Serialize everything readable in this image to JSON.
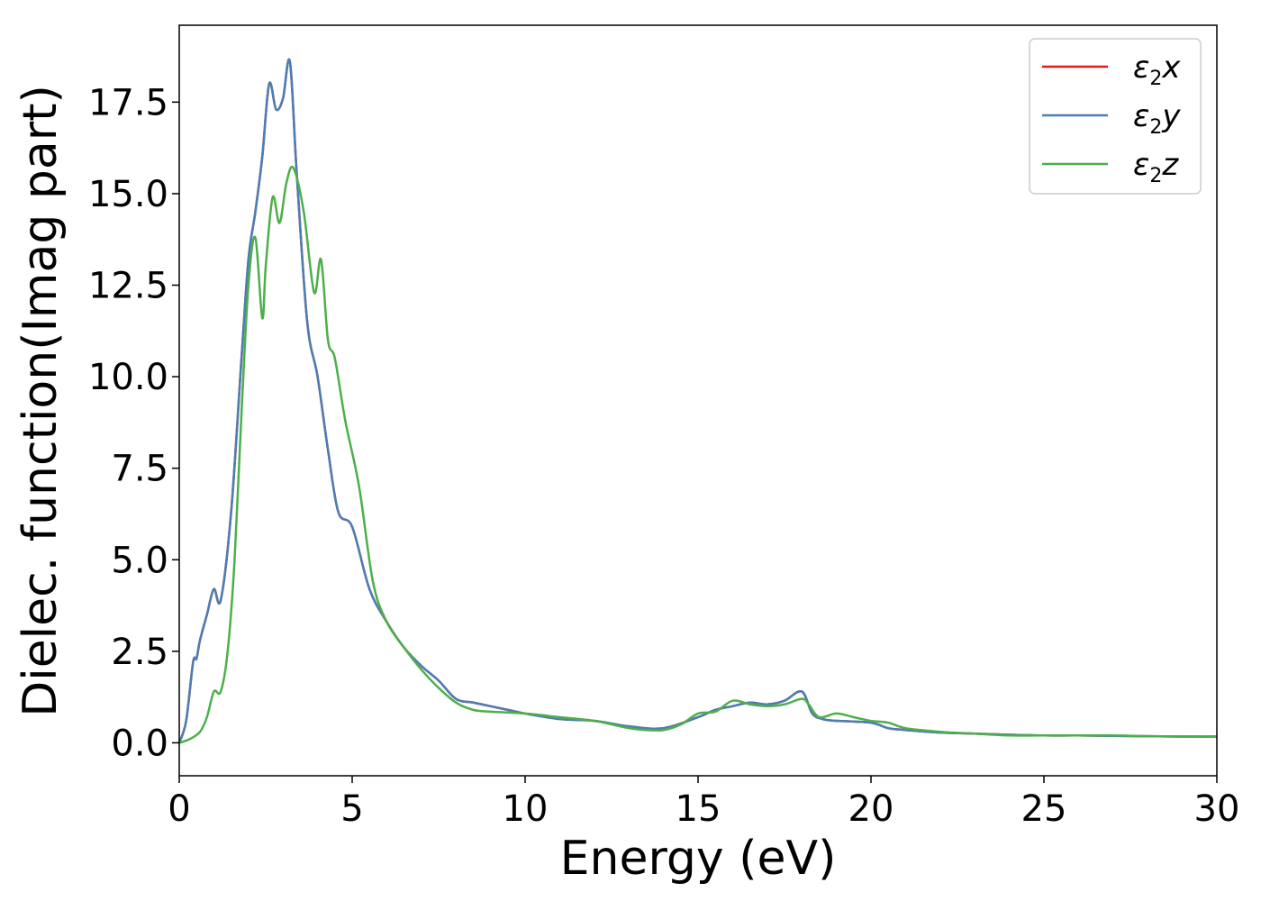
{
  "chart_data": {
    "type": "line",
    "title": "",
    "xlabel": "Energy (eV)",
    "ylabel": "Dielec. function(Imag part)",
    "xlim": [
      0,
      30
    ],
    "ylim": [
      -0.9,
      19.6
    ],
    "x_ticks": [
      0,
      5,
      10,
      15,
      20,
      25,
      30
    ],
    "x_tick_labels": [
      "0",
      "5",
      "10",
      "15",
      "20",
      "25",
      "30"
    ],
    "y_ticks": [
      0.0,
      2.5,
      5.0,
      7.5,
      10.0,
      12.5,
      15.0,
      17.5
    ],
    "y_tick_labels": [
      "0.0",
      "2.5",
      "5.0",
      "7.5",
      "10.0",
      "12.5",
      "15.0",
      "17.5"
    ],
    "grid": false,
    "legend_position": "top-right",
    "series": [
      {
        "name": "ε2x",
        "legend_base": "ε",
        "legend_sub": "2",
        "legend_tail": "x",
        "color": "#e41a1c",
        "x": [
          0,
          0.2,
          0.4,
          0.5,
          0.6,
          0.8,
          1.0,
          1.2,
          1.5,
          1.8,
          2.0,
          2.2,
          2.4,
          2.6,
          2.8,
          3.0,
          3.2,
          3.4,
          3.7,
          4.0,
          4.3,
          4.6,
          5.0,
          5.5,
          6.0,
          6.5,
          7.0,
          7.5,
          8.0,
          8.5,
          9.0,
          9.5,
          10.0,
          11.0,
          12.0,
          13.0,
          14.0,
          15.0,
          15.5,
          16.0,
          16.5,
          17.0,
          17.5,
          18.0,
          18.3,
          18.6,
          19.0,
          20.0,
          20.5,
          21.0,
          22.0,
          23.0,
          24.0,
          25.0,
          26.0,
          27.0,
          28.0,
          29.0,
          30.0
        ],
        "values": [
          0.0,
          0.6,
          2.2,
          2.3,
          2.8,
          3.5,
          4.2,
          3.9,
          6.3,
          10.5,
          13.2,
          14.5,
          16.0,
          18.0,
          17.3,
          17.6,
          18.6,
          15.5,
          11.5,
          10.0,
          8.0,
          6.3,
          5.9,
          4.2,
          3.3,
          2.6,
          2.1,
          1.7,
          1.2,
          1.1,
          1.0,
          0.9,
          0.8,
          0.65,
          0.6,
          0.45,
          0.4,
          0.7,
          0.9,
          1.0,
          1.1,
          1.05,
          1.15,
          1.4,
          0.8,
          0.65,
          0.6,
          0.55,
          0.4,
          0.35,
          0.28,
          0.25,
          0.22,
          0.2,
          0.2,
          0.19,
          0.18,
          0.17,
          0.17
        ]
      },
      {
        "name": "ε2y",
        "legend_base": "ε",
        "legend_sub": "2",
        "legend_tail": "y",
        "color": "#4a7fb5",
        "x": [
          0,
          0.2,
          0.4,
          0.5,
          0.6,
          0.8,
          1.0,
          1.2,
          1.5,
          1.8,
          2.0,
          2.2,
          2.4,
          2.6,
          2.8,
          3.0,
          3.2,
          3.4,
          3.7,
          4.0,
          4.3,
          4.6,
          5.0,
          5.5,
          6.0,
          6.5,
          7.0,
          7.5,
          8.0,
          8.5,
          9.0,
          9.5,
          10.0,
          11.0,
          12.0,
          13.0,
          14.0,
          15.0,
          15.5,
          16.0,
          16.5,
          17.0,
          17.5,
          18.0,
          18.3,
          18.6,
          19.0,
          20.0,
          20.5,
          21.0,
          22.0,
          23.0,
          24.0,
          25.0,
          26.0,
          27.0,
          28.0,
          29.0,
          30.0
        ],
        "values": [
          0.0,
          0.6,
          2.2,
          2.3,
          2.8,
          3.5,
          4.2,
          3.9,
          6.3,
          10.5,
          13.2,
          14.5,
          16.0,
          18.0,
          17.3,
          17.6,
          18.6,
          15.5,
          11.5,
          10.0,
          8.0,
          6.3,
          5.9,
          4.2,
          3.3,
          2.6,
          2.1,
          1.7,
          1.2,
          1.1,
          1.0,
          0.9,
          0.8,
          0.65,
          0.6,
          0.45,
          0.4,
          0.7,
          0.9,
          1.0,
          1.1,
          1.05,
          1.15,
          1.4,
          0.8,
          0.65,
          0.6,
          0.55,
          0.4,
          0.35,
          0.28,
          0.25,
          0.22,
          0.2,
          0.2,
          0.19,
          0.18,
          0.17,
          0.17
        ]
      },
      {
        "name": "ε2z",
        "legend_base": "ε",
        "legend_sub": "2",
        "legend_tail": "z",
        "color": "#4daf4a",
        "x": [
          0,
          0.3,
          0.6,
          0.8,
          1.0,
          1.2,
          1.4,
          1.6,
          1.8,
          2.0,
          2.2,
          2.4,
          2.5,
          2.7,
          2.9,
          3.1,
          3.3,
          3.6,
          3.9,
          4.1,
          4.3,
          4.5,
          4.8,
          5.2,
          5.6,
          6.0,
          6.5,
          7.0,
          7.5,
          8.0,
          8.5,
          9.0,
          10.0,
          11.0,
          12.0,
          13.0,
          13.5,
          14.0,
          14.5,
          15.0,
          15.5,
          16.0,
          16.5,
          17.0,
          17.5,
          18.0,
          18.2,
          18.5,
          19.0,
          19.5,
          20.0,
          20.5,
          21.0,
          22.0,
          23.0,
          24.0,
          25.0,
          26.0,
          27.0,
          28.0,
          29.0,
          30.0
        ],
        "values": [
          0.0,
          0.1,
          0.3,
          0.7,
          1.4,
          1.4,
          2.5,
          5.0,
          9.0,
          12.5,
          13.8,
          11.6,
          13.0,
          14.9,
          14.2,
          15.3,
          15.7,
          14.5,
          12.3,
          13.2,
          11.0,
          10.5,
          8.8,
          7.0,
          4.4,
          3.3,
          2.6,
          2.0,
          1.5,
          1.1,
          0.9,
          0.85,
          0.8,
          0.7,
          0.6,
          0.4,
          0.35,
          0.35,
          0.5,
          0.8,
          0.85,
          1.15,
          1.05,
          1.0,
          1.05,
          1.2,
          1.05,
          0.7,
          0.8,
          0.7,
          0.6,
          0.55,
          0.4,
          0.3,
          0.25,
          0.2,
          0.2,
          0.2,
          0.2,
          0.18,
          0.17,
          0.16
        ]
      }
    ]
  }
}
